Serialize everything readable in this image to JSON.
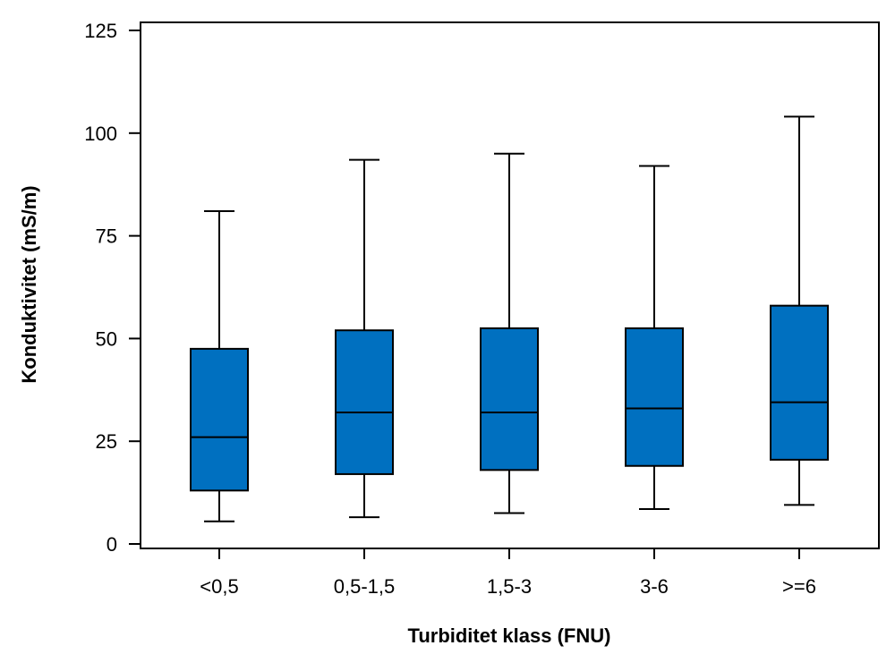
{
  "chart_data": {
    "type": "boxplot",
    "title": "",
    "xlabel": "Turbiditet klass (FNU)",
    "ylabel": "Konduktivitet (mS/m)",
    "ylim": [
      0,
      125
    ],
    "yticks": [
      0,
      25,
      50,
      75,
      100,
      125
    ],
    "categories": [
      "<0,5",
      "0,5-1,5",
      "1,5-3",
      "3-6",
      ">=6"
    ],
    "boxes": [
      {
        "category": "<0,5",
        "whisker_low": 5.5,
        "q1": 13.0,
        "median": 26.0,
        "q3": 47.5,
        "whisker_high": 81.0
      },
      {
        "category": "0,5-1,5",
        "whisker_low": 6.5,
        "q1": 17.0,
        "median": 32.0,
        "q3": 52.0,
        "whisker_high": 93.5
      },
      {
        "category": "1,5-3",
        "whisker_low": 7.5,
        "q1": 18.0,
        "median": 32.0,
        "q3": 52.5,
        "whisker_high": 95.0
      },
      {
        "category": "3-6",
        "whisker_low": 8.5,
        "q1": 19.0,
        "median": 33.0,
        "q3": 52.5,
        "whisker_high": 92.0
      },
      {
        "category": ">=6",
        "whisker_low": 9.5,
        "q1": 20.5,
        "median": 34.5,
        "q3": 58.0,
        "whisker_high": 104.0
      }
    ],
    "grid": false,
    "legend": "none",
    "box_color": "#0070C0",
    "line_color": "#000000"
  }
}
